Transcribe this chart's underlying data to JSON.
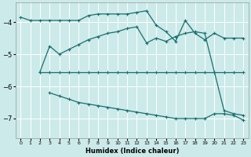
{
  "xlabel": "Humidex (Indice chaleur)",
  "bg_color": "#cceaea",
  "grid_color": "#ffffff",
  "line_color": "#1a6e6e",
  "xlim": [
    -0.5,
    23.5
  ],
  "ylim": [
    -7.6,
    -3.4
  ],
  "yticks": [
    -7,
    -6,
    -5,
    -4
  ],
  "xticks": [
    0,
    1,
    2,
    3,
    4,
    5,
    6,
    7,
    8,
    9,
    10,
    11,
    12,
    13,
    14,
    15,
    16,
    17,
    18,
    19,
    20,
    21,
    22,
    23
  ],
  "line1_x": [
    0,
    1,
    2,
    3,
    4,
    5,
    6,
    7,
    8,
    9,
    10,
    11,
    12,
    13,
    14,
    15,
    16,
    17,
    18,
    19,
    20,
    21,
    22,
    23
  ],
  "line1_y": [
    -3.85,
    -3.95,
    -3.95,
    -3.95,
    -3.95,
    -3.95,
    -3.95,
    -3.8,
    -3.75,
    -3.75,
    -3.75,
    -3.75,
    -3.7,
    -3.65,
    -4.1,
    -4.3,
    -4.6,
    -3.95,
    -4.35,
    -4.55,
    -4.35,
    -4.5,
    -4.5,
    -4.5
  ],
  "line2_x": [
    2,
    3,
    4,
    5,
    6,
    7,
    8,
    9,
    10,
    11,
    12,
    13,
    14,
    15,
    16,
    17,
    18,
    19,
    20,
    21,
    22,
    23
  ],
  "line2_y": [
    -5.55,
    -5.55,
    -5.55,
    -5.55,
    -5.55,
    -5.55,
    -5.55,
    -5.55,
    -5.55,
    -5.55,
    -5.55,
    -5.55,
    -5.55,
    -5.55,
    -5.55,
    -5.55,
    -5.55,
    -5.55,
    -5.55,
    -5.55,
    -5.55,
    -5.55
  ],
  "line3_x": [
    2,
    3,
    4,
    5,
    6,
    7,
    8,
    9,
    10,
    11,
    12,
    13,
    14,
    15,
    16,
    17,
    18,
    19,
    20,
    21,
    22,
    23
  ],
  "line3_y": [
    -5.55,
    -4.75,
    -5.0,
    -4.85,
    -4.7,
    -4.55,
    -4.45,
    -4.35,
    -4.3,
    -4.2,
    -4.15,
    -4.65,
    -4.5,
    -4.6,
    -4.45,
    -4.35,
    -4.3,
    -4.35,
    -5.55,
    -6.75,
    -6.85,
    -6.9
  ],
  "line4_x": [
    3,
    4,
    5,
    6,
    7,
    8,
    9,
    10,
    11,
    12,
    13,
    14,
    15,
    16,
    17,
    18,
    19,
    20,
    21,
    22,
    23
  ],
  "line4_y": [
    -6.2,
    -6.3,
    -6.4,
    -6.5,
    -6.55,
    -6.6,
    -6.65,
    -6.7,
    -6.75,
    -6.8,
    -6.85,
    -6.9,
    -6.95,
    -7.0,
    -7.0,
    -7.0,
    -7.0,
    -6.85,
    -6.85,
    -6.9,
    -7.05
  ]
}
